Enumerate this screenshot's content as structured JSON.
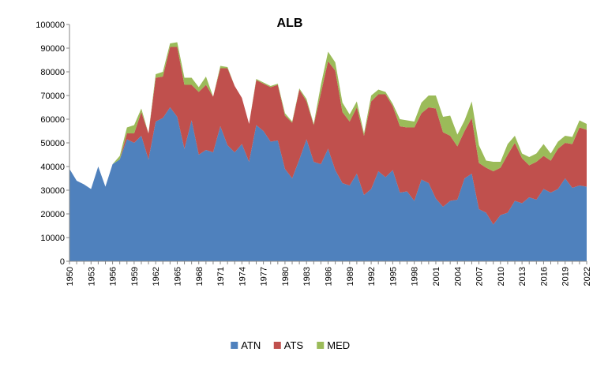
{
  "chart_data": {
    "type": "area",
    "stacked": true,
    "title": "ALB",
    "xlabel": "",
    "ylabel": "",
    "ylim": [
      0,
      100000
    ],
    "yticks": [
      0,
      10000,
      20000,
      30000,
      40000,
      50000,
      60000,
      70000,
      80000,
      90000,
      100000
    ],
    "xtick_labels": [
      "1950",
      "1953",
      "1956",
      "1959",
      "1962",
      "1965",
      "1968",
      "1971",
      "1974",
      "1977",
      "1980",
      "1983",
      "1986",
      "1989",
      "1992",
      "1995",
      "1998",
      "2001",
      "2004",
      "2007",
      "2010",
      "2013",
      "2016",
      "2019",
      "2022"
    ],
    "grid": false,
    "legend_position": "bottom",
    "x": [
      1950,
      1951,
      1952,
      1953,
      1954,
      1955,
      1956,
      1957,
      1958,
      1959,
      1960,
      1961,
      1962,
      1963,
      1964,
      1965,
      1966,
      1967,
      1968,
      1969,
      1970,
      1971,
      1972,
      1973,
      1974,
      1975,
      1976,
      1977,
      1978,
      1979,
      1980,
      1981,
      1982,
      1983,
      1984,
      1985,
      1986,
      1987,
      1988,
      1989,
      1990,
      1991,
      1992,
      1993,
      1994,
      1995,
      1996,
      1997,
      1998,
      1999,
      2000,
      2001,
      2002,
      2003,
      2004,
      2005,
      2006,
      2007,
      2008,
      2009,
      2010,
      2011,
      2012,
      2013,
      2014,
      2015,
      2016,
      2017,
      2018,
      2019,
      2020,
      2021,
      2022
    ],
    "series": [
      {
        "name": "ATN",
        "color": "#4f81bd",
        "values": [
          39000,
          34000,
          32500,
          30500,
          40000,
          31500,
          41000,
          43000,
          51500,
          50000,
          53000,
          43000,
          59000,
          60500,
          65000,
          61000,
          47500,
          59500,
          45000,
          47000,
          46000,
          57000,
          49000,
          46000,
          49500,
          42000,
          57500,
          55000,
          50500,
          51000,
          39000,
          35000,
          43000,
          51500,
          42000,
          41000,
          47500,
          38500,
          33000,
          32000,
          37000,
          28000,
          30500,
          38000,
          35500,
          38500,
          29000,
          29500,
          25500,
          34500,
          33000,
          26500,
          23000,
          25500,
          26000,
          35000,
          37000,
          22000,
          20500,
          15500,
          19500,
          20500,
          25500,
          24500,
          27000,
          26000,
          30500,
          29000,
          30500,
          35000,
          31000,
          32000,
          31500
        ]
      },
      {
        "name": "ATS",
        "color": "#c0504d",
        "values": [
          0,
          0,
          0,
          0,
          0,
          0,
          0,
          0,
          2500,
          4000,
          10000,
          11000,
          18500,
          17500,
          25500,
          29500,
          27000,
          15000,
          26500,
          27500,
          23500,
          24500,
          32500,
          28000,
          19500,
          16000,
          19000,
          20000,
          23000,
          23500,
          22500,
          23500,
          29500,
          16000,
          15500,
          30000,
          37000,
          42000,
          30000,
          27000,
          28000,
          25000,
          37000,
          32500,
          35000,
          27000,
          28000,
          27000,
          31000,
          28000,
          32000,
          38000,
          31500,
          27500,
          22500,
          20000,
          23500,
          19500,
          19000,
          22500,
          20000,
          24500,
          24500,
          19000,
          13500,
          16000,
          14000,
          13500,
          17000,
          15000,
          18500,
          24500,
          24000
        ]
      },
      {
        "name": "MED",
        "color": "#9bbb59",
        "values": [
          0,
          0,
          0,
          0,
          0,
          0,
          0,
          1500,
          2500,
          3500,
          1500,
          0,
          1500,
          2000,
          1500,
          2000,
          3000,
          3000,
          2000,
          3500,
          0,
          1000,
          500,
          0,
          0,
          0,
          500,
          500,
          500,
          500,
          1000,
          500,
          500,
          1000,
          500,
          3500,
          4000,
          3500,
          4000,
          3000,
          2500,
          1000,
          2500,
          2000,
          1000,
          1000,
          3000,
          3000,
          2500,
          4500,
          5000,
          5500,
          6500,
          8500,
          5000,
          4500,
          7000,
          7500,
          3000,
          4000,
          2500,
          4500,
          3000,
          2000,
          3500,
          3500,
          5000,
          3000,
          3000,
          3000,
          3000,
          3000,
          2500
        ]
      }
    ]
  }
}
